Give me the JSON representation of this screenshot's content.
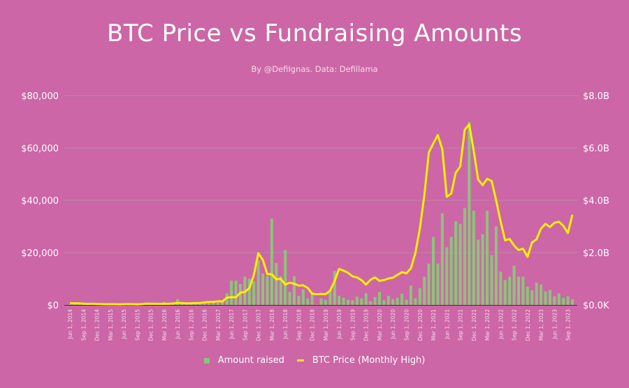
{
  "chart_data": {
    "type": "bar+line",
    "title": "BTC Price vs Fundraising Amounts",
    "subtitle": "By @DefiIgnas. Data: Defillama",
    "colors": {
      "background": "#CC66A6",
      "bars": "#8DC47A",
      "line": "#FFEF00",
      "grid": "#B98AA6"
    },
    "left_axis": {
      "label": "BTC Price",
      "ticks": [
        "$0",
        "$20,000",
        "$40,000",
        "$60,000",
        "$80,000"
      ],
      "range": [
        0,
        80000
      ]
    },
    "right_axis": {
      "label": "Amount raised",
      "ticks": [
        "$0.0K",
        "$2.0B",
        "$4.0B",
        "$6.0B",
        "$8.0B"
      ],
      "range": [
        0,
        8
      ]
    },
    "x_tick_labels": [
      "Jun 1, 2014",
      "Sep 1, 2014",
      "Dec 1, 2014",
      "Mar 1, 2015",
      "Jun 1, 2015",
      "Sep 1, 2015",
      "Dec 1, 2015",
      "Mar 1, 2016",
      "Jun 1, 2016",
      "Sep 1, 2016",
      "Dec 1, 2016",
      "Mar 1, 2017",
      "Jun 1, 2017",
      "Sep 1, 2017",
      "Dec 1, 2017",
      "Mar 1, 2018",
      "Jun 1, 2018",
      "Sep 1, 2018",
      "Dec 1, 2018",
      "Mar 1, 2019",
      "Jun 1, 2019",
      "Sep 1, 2019",
      "Dec 1, 2019",
      "Mar 1, 2020",
      "Jun 1, 2020",
      "Sep 1, 2020",
      "Dec 1, 2020",
      "Mar 1, 2021",
      "Jun 1, 2021",
      "Sep 1, 2021",
      "Dec 1, 2021",
      "Mar 1, 2022",
      "Jun 1, 2022",
      "Sep 1, 2022",
      "Dec 1, 2022",
      "Mar 1, 2023",
      "Jun 1, 2023",
      "Sep 1, 2023"
    ],
    "x_start": "Jun 2014",
    "x_end": "Oct 2023",
    "series": [
      {
        "name": "Amount raised",
        "type": "bar",
        "axis": "right",
        "unit": "B USD",
        "values": [
          0.02,
          0.03,
          0.02,
          0.03,
          0.02,
          0.02,
          0.03,
          0.02,
          0.02,
          0.03,
          0.03,
          0.02,
          0.04,
          0.03,
          0.04,
          0.05,
          0.04,
          0.06,
          0.05,
          0.08,
          0.06,
          0.12,
          0.08,
          0.07,
          0.22,
          0.08,
          0.06,
          0.05,
          0.07,
          0.06,
          0.08,
          0.06,
          0.09,
          0.08,
          0.12,
          0.44,
          0.93,
          0.93,
          0.8,
          1.08,
          1.0,
          0.9,
          1.7,
          1.2,
          1.1,
          3.3,
          1.6,
          1.1,
          2.1,
          0.5,
          1.1,
          0.35,
          0.6,
          0.25,
          0.45,
          0.02,
          0.25,
          0.2,
          0.55,
          1.3,
          0.35,
          0.28,
          0.2,
          0.18,
          0.32,
          0.25,
          0.45,
          0.15,
          0.3,
          0.5,
          0.18,
          0.35,
          0.22,
          0.27,
          0.43,
          0.2,
          0.74,
          0.25,
          0.64,
          1.08,
          1.58,
          2.6,
          1.58,
          3.5,
          2.2,
          2.6,
          3.2,
          3.1,
          3.7,
          7.0,
          3.6,
          2.5,
          2.7,
          3.6,
          1.9,
          3.0,
          1.27,
          0.95,
          1.08,
          1.5,
          1.08,
          1.08,
          0.7,
          0.56,
          0.85,
          0.78,
          0.52,
          0.57,
          0.33,
          0.45,
          0.27,
          0.33,
          0.22
        ]
      },
      {
        "name": "BTC Price (Monthly High)",
        "type": "line",
        "axis": "left",
        "unit": "USD",
        "values": [
          680,
          650,
          600,
          500,
          410,
          450,
          380,
          320,
          260,
          300,
          260,
          250,
          270,
          310,
          280,
          240,
          330,
          500,
          460,
          460,
          440,
          420,
          470,
          550,
          780,
          700,
          610,
          630,
          730,
          750,
          980,
          1150,
          1200,
          1350,
          1350,
          2760,
          2980,
          2900,
          4700,
          4970,
          6400,
          11400,
          19800,
          17200,
          11800,
          11700,
          9800,
          10000,
          7800,
          8500,
          8100,
          7400,
          7500,
          6500,
          4300,
          4100,
          4200,
          4100,
          5500,
          9100,
          13800,
          13100,
          12300,
          10900,
          10500,
          9500,
          7800,
          9600,
          10500,
          9200,
          9500,
          10100,
          10400,
          11500,
          12500,
          12100,
          14000,
          19800,
          29300,
          41900,
          58300,
          61700,
          64900,
          59500,
          41300,
          42600,
          50500,
          52900,
          67000,
          69000,
          59000,
          47900,
          45800,
          48200,
          47400,
          40000,
          31900,
          24700,
          25200,
          22700,
          21000,
          21500,
          18400,
          23900,
          25100,
          29200,
          31000,
          29800,
          31400,
          31800,
          30200,
          27500,
          34500
        ]
      }
    ],
    "legend": {
      "placement": "bottom-center",
      "entries": [
        "Amount raised",
        "BTC Price (Monthly High)"
      ]
    },
    "grid": true
  }
}
